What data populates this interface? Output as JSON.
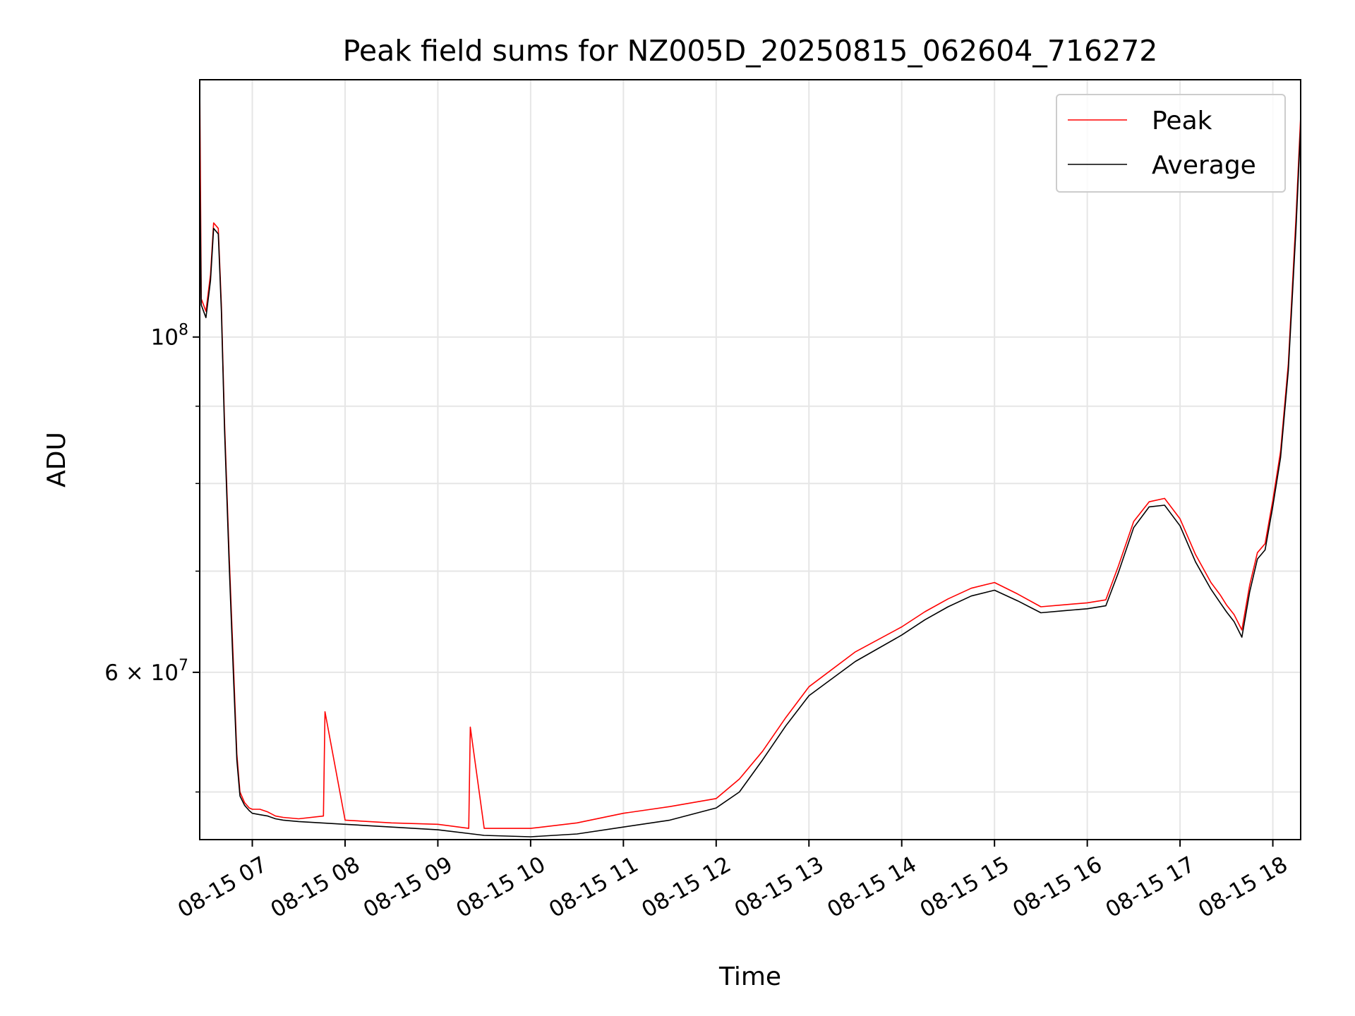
{
  "chart_data": {
    "type": "line",
    "title": "Peak field sums for NZ005D_20250815_062604_716272",
    "xlabel": "Time",
    "ylabel": "ADU",
    "y_scale": "log",
    "ylim": [
      46500000,
      148000000
    ],
    "xlim": [
      "08-15 06:26",
      "08-15 18:18"
    ],
    "x_ticks": [
      "08-15 07",
      "08-15 08",
      "08-15 09",
      "08-15 10",
      "08-15 11",
      "08-15 12",
      "08-15 13",
      "08-15 14",
      "08-15 15",
      "08-15 16",
      "08-15 17",
      "08-15 18"
    ],
    "y_ticks": [
      {
        "value": 100000000,
        "base": "10",
        "exp": "8",
        "mantissa": ""
      },
      {
        "value": 60000000,
        "base": "10",
        "exp": "7",
        "mantissa": "6"
      }
    ],
    "y_minor_ticks": [
      50000000,
      70000000,
      80000000,
      90000000
    ],
    "grid": true,
    "legend": {
      "placement": "top-right"
    },
    "series": [
      {
        "name": "Peak",
        "color": "#ff0000",
        "x": [
          "08-15 06:26",
          "08-15 06:27",
          "08-15 06:30",
          "08-15 06:33",
          "08-15 06:35",
          "08-15 06:38",
          "08-15 06:40",
          "08-15 06:42",
          "08-15 06:45",
          "08-15 06:48",
          "08-15 06:50",
          "08-15 06:52",
          "08-15 06:55",
          "08-15 06:58",
          "08-15 07:00",
          "08-15 07:05",
          "08-15 07:10",
          "08-15 07:15",
          "08-15 07:20",
          "08-15 07:30",
          "08-15 07:46",
          "08-15 07:47",
          "08-15 08:00",
          "08-15 08:30",
          "08-15 09:00",
          "08-15 09:20",
          "08-15 09:21",
          "08-15 09:30",
          "08-15 10:00",
          "08-15 10:30",
          "08-15 11:00",
          "08-15 11:30",
          "08-15 12:00",
          "08-15 12:15",
          "08-15 12:30",
          "08-15 12:45",
          "08-15 13:00",
          "08-15 13:30",
          "08-15 14:00",
          "08-15 14:15",
          "08-15 14:30",
          "08-15 14:45",
          "08-15 15:00",
          "08-15 15:15",
          "08-15 15:30",
          "08-15 15:45",
          "08-15 16:00",
          "08-15 16:12",
          "08-15 16:20",
          "08-15 16:30",
          "08-15 16:40",
          "08-15 16:50",
          "08-15 17:00",
          "08-15 17:10",
          "08-15 17:20",
          "08-15 17:26",
          "08-15 17:30",
          "08-15 17:35",
          "08-15 17:40",
          "08-15 17:45",
          "08-15 17:50",
          "08-15 17:55",
          "08-15 18:00",
          "08-15 18:05",
          "08-15 18:10",
          "08-15 18:15",
          "08-15 18:18"
        ],
        "values": [
          148000000,
          106000000,
          104000000,
          110000000,
          119000000,
          118000000,
          105000000,
          88000000,
          72000000,
          60000000,
          53000000,
          50000000,
          49200000,
          48800000,
          48700000,
          48700000,
          48500000,
          48200000,
          48100000,
          48000000,
          48200000,
          56500000,
          47900000,
          47700000,
          47600000,
          47300000,
          55200000,
          47300000,
          47300000,
          47700000,
          48400000,
          48900000,
          49500000,
          51000000,
          53200000,
          56000000,
          58700000,
          61900000,
          64300000,
          65800000,
          67100000,
          68200000,
          68800000,
          67600000,
          66300000,
          66500000,
          66700000,
          67000000,
          70500000,
          75500000,
          77800000,
          78200000,
          75800000,
          71800000,
          68800000,
          67500000,
          66500000,
          65500000,
          64000000,
          68500000,
          72000000,
          73000000,
          78000000,
          84000000,
          96000000,
          120000000,
          140000000
        ]
      },
      {
        "name": "Average",
        "color": "#000000",
        "x": [
          "08-15 06:26",
          "08-15 06:27",
          "08-15 06:30",
          "08-15 06:33",
          "08-15 06:35",
          "08-15 06:38",
          "08-15 06:40",
          "08-15 06:42",
          "08-15 06:45",
          "08-15 06:48",
          "08-15 06:50",
          "08-15 06:52",
          "08-15 06:55",
          "08-15 06:58",
          "08-15 07:00",
          "08-15 07:05",
          "08-15 07:10",
          "08-15 07:15",
          "08-15 07:20",
          "08-15 07:30",
          "08-15 08:00",
          "08-15 08:30",
          "08-15 09:00",
          "08-15 09:30",
          "08-15 10:00",
          "08-15 10:30",
          "08-15 11:00",
          "08-15 11:30",
          "08-15 12:00",
          "08-15 12:15",
          "08-15 12:30",
          "08-15 12:45",
          "08-15 13:00",
          "08-15 13:30",
          "08-15 14:00",
          "08-15 14:15",
          "08-15 14:30",
          "08-15 14:45",
          "08-15 15:00",
          "08-15 15:15",
          "08-15 15:30",
          "08-15 15:45",
          "08-15 16:00",
          "08-15 16:12",
          "08-15 16:20",
          "08-15 16:30",
          "08-15 16:40",
          "08-15 16:50",
          "08-15 17:00",
          "08-15 17:10",
          "08-15 17:20",
          "08-15 17:26",
          "08-15 17:30",
          "08-15 17:35",
          "08-15 17:40",
          "08-15 17:45",
          "08-15 17:50",
          "08-15 17:55",
          "08-15 18:00",
          "08-15 18:05",
          "08-15 18:10",
          "08-15 18:15",
          "08-15 18:18"
        ],
        "values": [
          130000000,
          105000000,
          103000000,
          109000000,
          118000000,
          117000000,
          104000000,
          87000000,
          71000000,
          59000000,
          52500000,
          49700000,
          49000000,
          48600000,
          48400000,
          48300000,
          48200000,
          48000000,
          47900000,
          47800000,
          47600000,
          47400000,
          47200000,
          46800000,
          46700000,
          46900000,
          47400000,
          47900000,
          48800000,
          50000000,
          52500000,
          55300000,
          57900000,
          61000000,
          63500000,
          65000000,
          66300000,
          67400000,
          68000000,
          66900000,
          65700000,
          65900000,
          66100000,
          66400000,
          69800000,
          74800000,
          77200000,
          77400000,
          75000000,
          71000000,
          68100000,
          66700000,
          65800000,
          64800000,
          63300000,
          67800000,
          71300000,
          72300000,
          77300000,
          83200000,
          95000000,
          118000000,
          138000000
        ]
      }
    ]
  }
}
